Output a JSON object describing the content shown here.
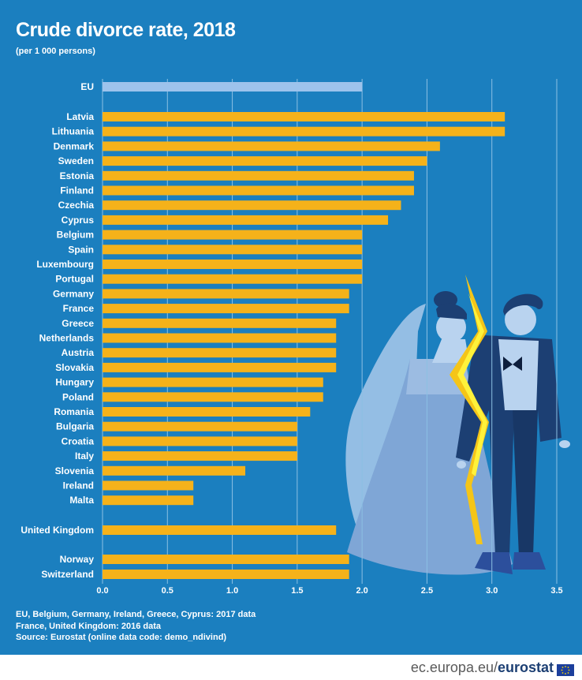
{
  "title": "Crude divorce rate, 2018",
  "subtitle": "(per 1 000 persons)",
  "notes": [
    "EU, Belgium, Germany, Ireland, Greece, Cyprus: 2017 data",
    "France, United Kingdom: 2016 data",
    "Source: Eurostat (online data code: demo_ndivind)"
  ],
  "footer": {
    "site": "ec.europa.eu/",
    "brand": "eurostat"
  },
  "colors": {
    "background": "#1b7fbf",
    "bar": "#f5b21a",
    "eu_bar": "#9dc3ec",
    "gridline": "#8cc0e3",
    "text": "#ffffff"
  },
  "chart_data": {
    "type": "bar",
    "orientation": "horizontal",
    "title": "Crude divorce rate, 2018",
    "subtitle": "(per 1 000 persons)",
    "categories": [
      "EU",
      "Latvia",
      "Lithuania",
      "Denmark",
      "Sweden",
      "Estonia",
      "Finland",
      "Czechia",
      "Cyprus",
      "Belgium",
      "Spain",
      "Luxembourg",
      "Portugal",
      "Germany",
      "France",
      "Greece",
      "Netherlands",
      "Austria",
      "Slovakia",
      "Hungary",
      "Poland",
      "Romania",
      "Bulgaria",
      "Croatia",
      "Italy",
      "Slovenia",
      "Ireland",
      "Malta",
      "United Kingdom",
      "Norway",
      "Switzerland"
    ],
    "values": [
      2.0,
      3.1,
      3.1,
      2.6,
      2.5,
      2.4,
      2.4,
      2.3,
      2.2,
      2.0,
      2.0,
      2.0,
      2.0,
      1.9,
      1.9,
      1.8,
      1.8,
      1.8,
      1.8,
      1.7,
      1.7,
      1.6,
      1.5,
      1.5,
      1.5,
      1.1,
      0.7,
      0.7,
      1.8,
      1.9,
      1.9
    ],
    "highlight": [
      "EU"
    ],
    "xlim": [
      0,
      3.5
    ],
    "xticks": [
      "0.0",
      "0.5",
      "1.0",
      "1.5",
      "2.0",
      "2.5",
      "3.0",
      "3.5"
    ],
    "grid": "vertical",
    "legend": "none"
  }
}
